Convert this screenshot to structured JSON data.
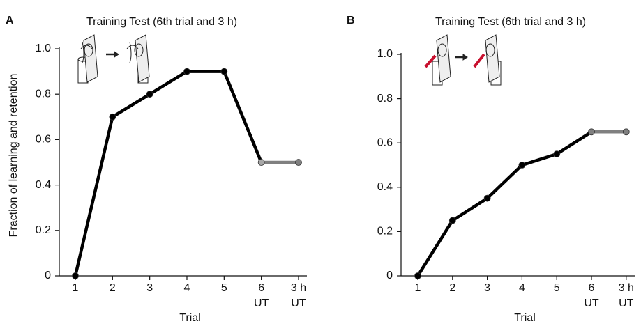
{
  "chart_data": [
    {
      "type": "line",
      "panel": "A",
      "title": "Training Test (6th trial and 3 h)",
      "xlabel": "Trial",
      "ylabel": "Fraction of learning and retention",
      "categories": [
        "1",
        "2",
        "3",
        "4",
        "5",
        "6\nUT",
        "3 h\nUT"
      ],
      "values": [
        0,
        0.7,
        0.8,
        0.9,
        0.9,
        0.5,
        0.5
      ],
      "point_colors": [
        "#000000",
        "#000000",
        "#000000",
        "#000000",
        "#000000",
        "#a8a8a8",
        "#808080"
      ],
      "segment_colors": [
        "#000000",
        "#000000",
        "#000000",
        "#000000",
        "#000000",
        "#808080"
      ],
      "ylim": [
        0,
        1
      ],
      "yticks": [
        0,
        0.2,
        0.4,
        0.6,
        0.8,
        {
          "value": 1,
          "label": "1.0"
        }
      ]
    },
    {
      "type": "line",
      "panel": "B",
      "title": "Training Test (6th trial and 3 h)",
      "xlabel": "Trial",
      "categories": [
        "1",
        "2",
        "3",
        "4",
        "5",
        "6\nUT",
        "3 h\nUT"
      ],
      "values": [
        0,
        0.25,
        0.35,
        0.5,
        0.55,
        0.65,
        0.65
      ],
      "point_colors": [
        "#000000",
        "#000000",
        "#000000",
        "#000000",
        "#000000",
        "#808080",
        "#808080"
      ],
      "segment_colors": [
        "#000000",
        "#000000",
        "#000000",
        "#000000",
        "#000000",
        "#808080"
      ],
      "ylim": [
        0,
        1
      ],
      "yticks": [
        0,
        0.2,
        0.4,
        0.6,
        0.8,
        {
          "value": 1,
          "label": "1.0"
        }
      ]
    }
  ]
}
